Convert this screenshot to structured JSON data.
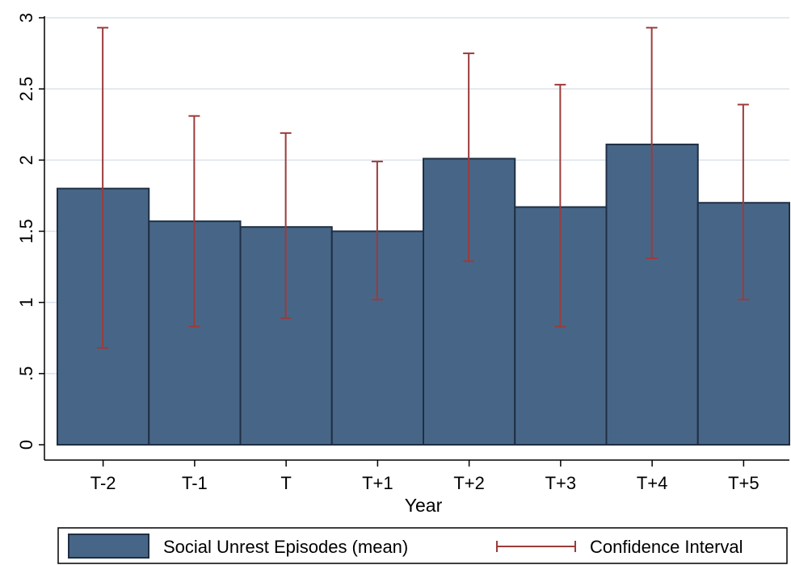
{
  "colors": {
    "bar_fill": "#476687",
    "bar_stroke": "#1f2f44",
    "error_bar": "#9c3b3b",
    "grid": "#d9e3ec",
    "axis": "#000000"
  },
  "chart_data": {
    "type": "bar",
    "title": "",
    "xlabel": "Year",
    "ylabel": "",
    "categories": [
      "T-2",
      "T-1",
      "T",
      "T+1",
      "T+2",
      "T+3",
      "T+4",
      "T+5"
    ],
    "series": [
      {
        "name": "Social Unrest Episodes (mean)",
        "values": [
          1.8,
          1.57,
          1.53,
          1.5,
          2.01,
          1.67,
          2.11,
          1.7
        ]
      }
    ],
    "error_bars": {
      "name": "Confidence Interval",
      "lower": [
        0.68,
        0.83,
        0.89,
        1.02,
        1.29,
        0.83,
        1.31,
        1.02
      ],
      "upper": [
        2.93,
        2.31,
        2.19,
        1.99,
        2.75,
        2.53,
        2.93,
        2.39
      ]
    },
    "ylim": [
      0,
      3
    ],
    "yticks": [
      0,
      0.5,
      1,
      1.5,
      2,
      2.5,
      3
    ],
    "ytick_labels": [
      "0",
      ".5",
      "1",
      "1.5",
      "2",
      "2.5",
      "3"
    ],
    "grid": true,
    "legend_position": "bottom"
  }
}
